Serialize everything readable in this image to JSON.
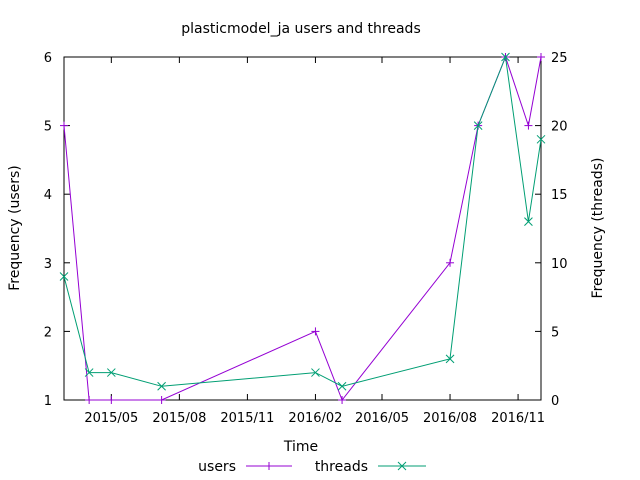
{
  "chart_data": {
    "type": "line",
    "title": "plasticmodel_ja users and threads",
    "xlabel": "Time",
    "ylabel_left": "Frequency (users)",
    "ylabel_right": "Frequency (threads)",
    "x_ticks": [
      "2015/05",
      "2015/08",
      "2015/11",
      "2016/02",
      "2016/05",
      "2016/08",
      "2016/11"
    ],
    "y_left_ticks": [
      "1",
      "2",
      "3",
      "4",
      "5",
      "6"
    ],
    "y_right_ticks": [
      "0",
      "5",
      "10",
      "15",
      "20",
      "25"
    ],
    "xlim": [
      "2015-02-26",
      "2016-12-02"
    ],
    "ylim_left": [
      1,
      6
    ],
    "ylim_right": [
      0,
      25
    ],
    "grid": false,
    "legend_position": "bottom",
    "series": [
      {
        "name": "users",
        "axis": "left",
        "color": "#9400d3",
        "marker": "plus",
        "points": [
          {
            "x": "2015-02-26",
            "y": 5
          },
          {
            "x": "2015-04-01",
            "y": 1
          },
          {
            "x": "2015-05-01",
            "y": 1
          },
          {
            "x": "2015-07-08",
            "y": 1
          },
          {
            "x": "2016-02-01",
            "y": 2
          },
          {
            "x": "2016-03-08",
            "y": 1
          },
          {
            "x": "2016-08-01",
            "y": 3
          },
          {
            "x": "2016-09-08",
            "y": 5
          },
          {
            "x": "2016-10-15",
            "y": 6
          },
          {
            "x": "2016-11-15",
            "y": 5
          },
          {
            "x": "2016-12-02",
            "y": 6
          }
        ]
      },
      {
        "name": "threads",
        "axis": "right",
        "color": "#009e73",
        "marker": "cross",
        "points": [
          {
            "x": "2015-02-26",
            "y": 9
          },
          {
            "x": "2015-04-01",
            "y": 2
          },
          {
            "x": "2015-05-01",
            "y": 2
          },
          {
            "x": "2015-07-08",
            "y": 1
          },
          {
            "x": "2016-02-01",
            "y": 2
          },
          {
            "x": "2016-03-08",
            "y": 1
          },
          {
            "x": "2016-08-01",
            "y": 3
          },
          {
            "x": "2016-09-08",
            "y": 20
          },
          {
            "x": "2016-10-15",
            "y": 25
          },
          {
            "x": "2016-11-15",
            "y": 13
          },
          {
            "x": "2016-12-02",
            "y": 19
          }
        ]
      }
    ]
  }
}
